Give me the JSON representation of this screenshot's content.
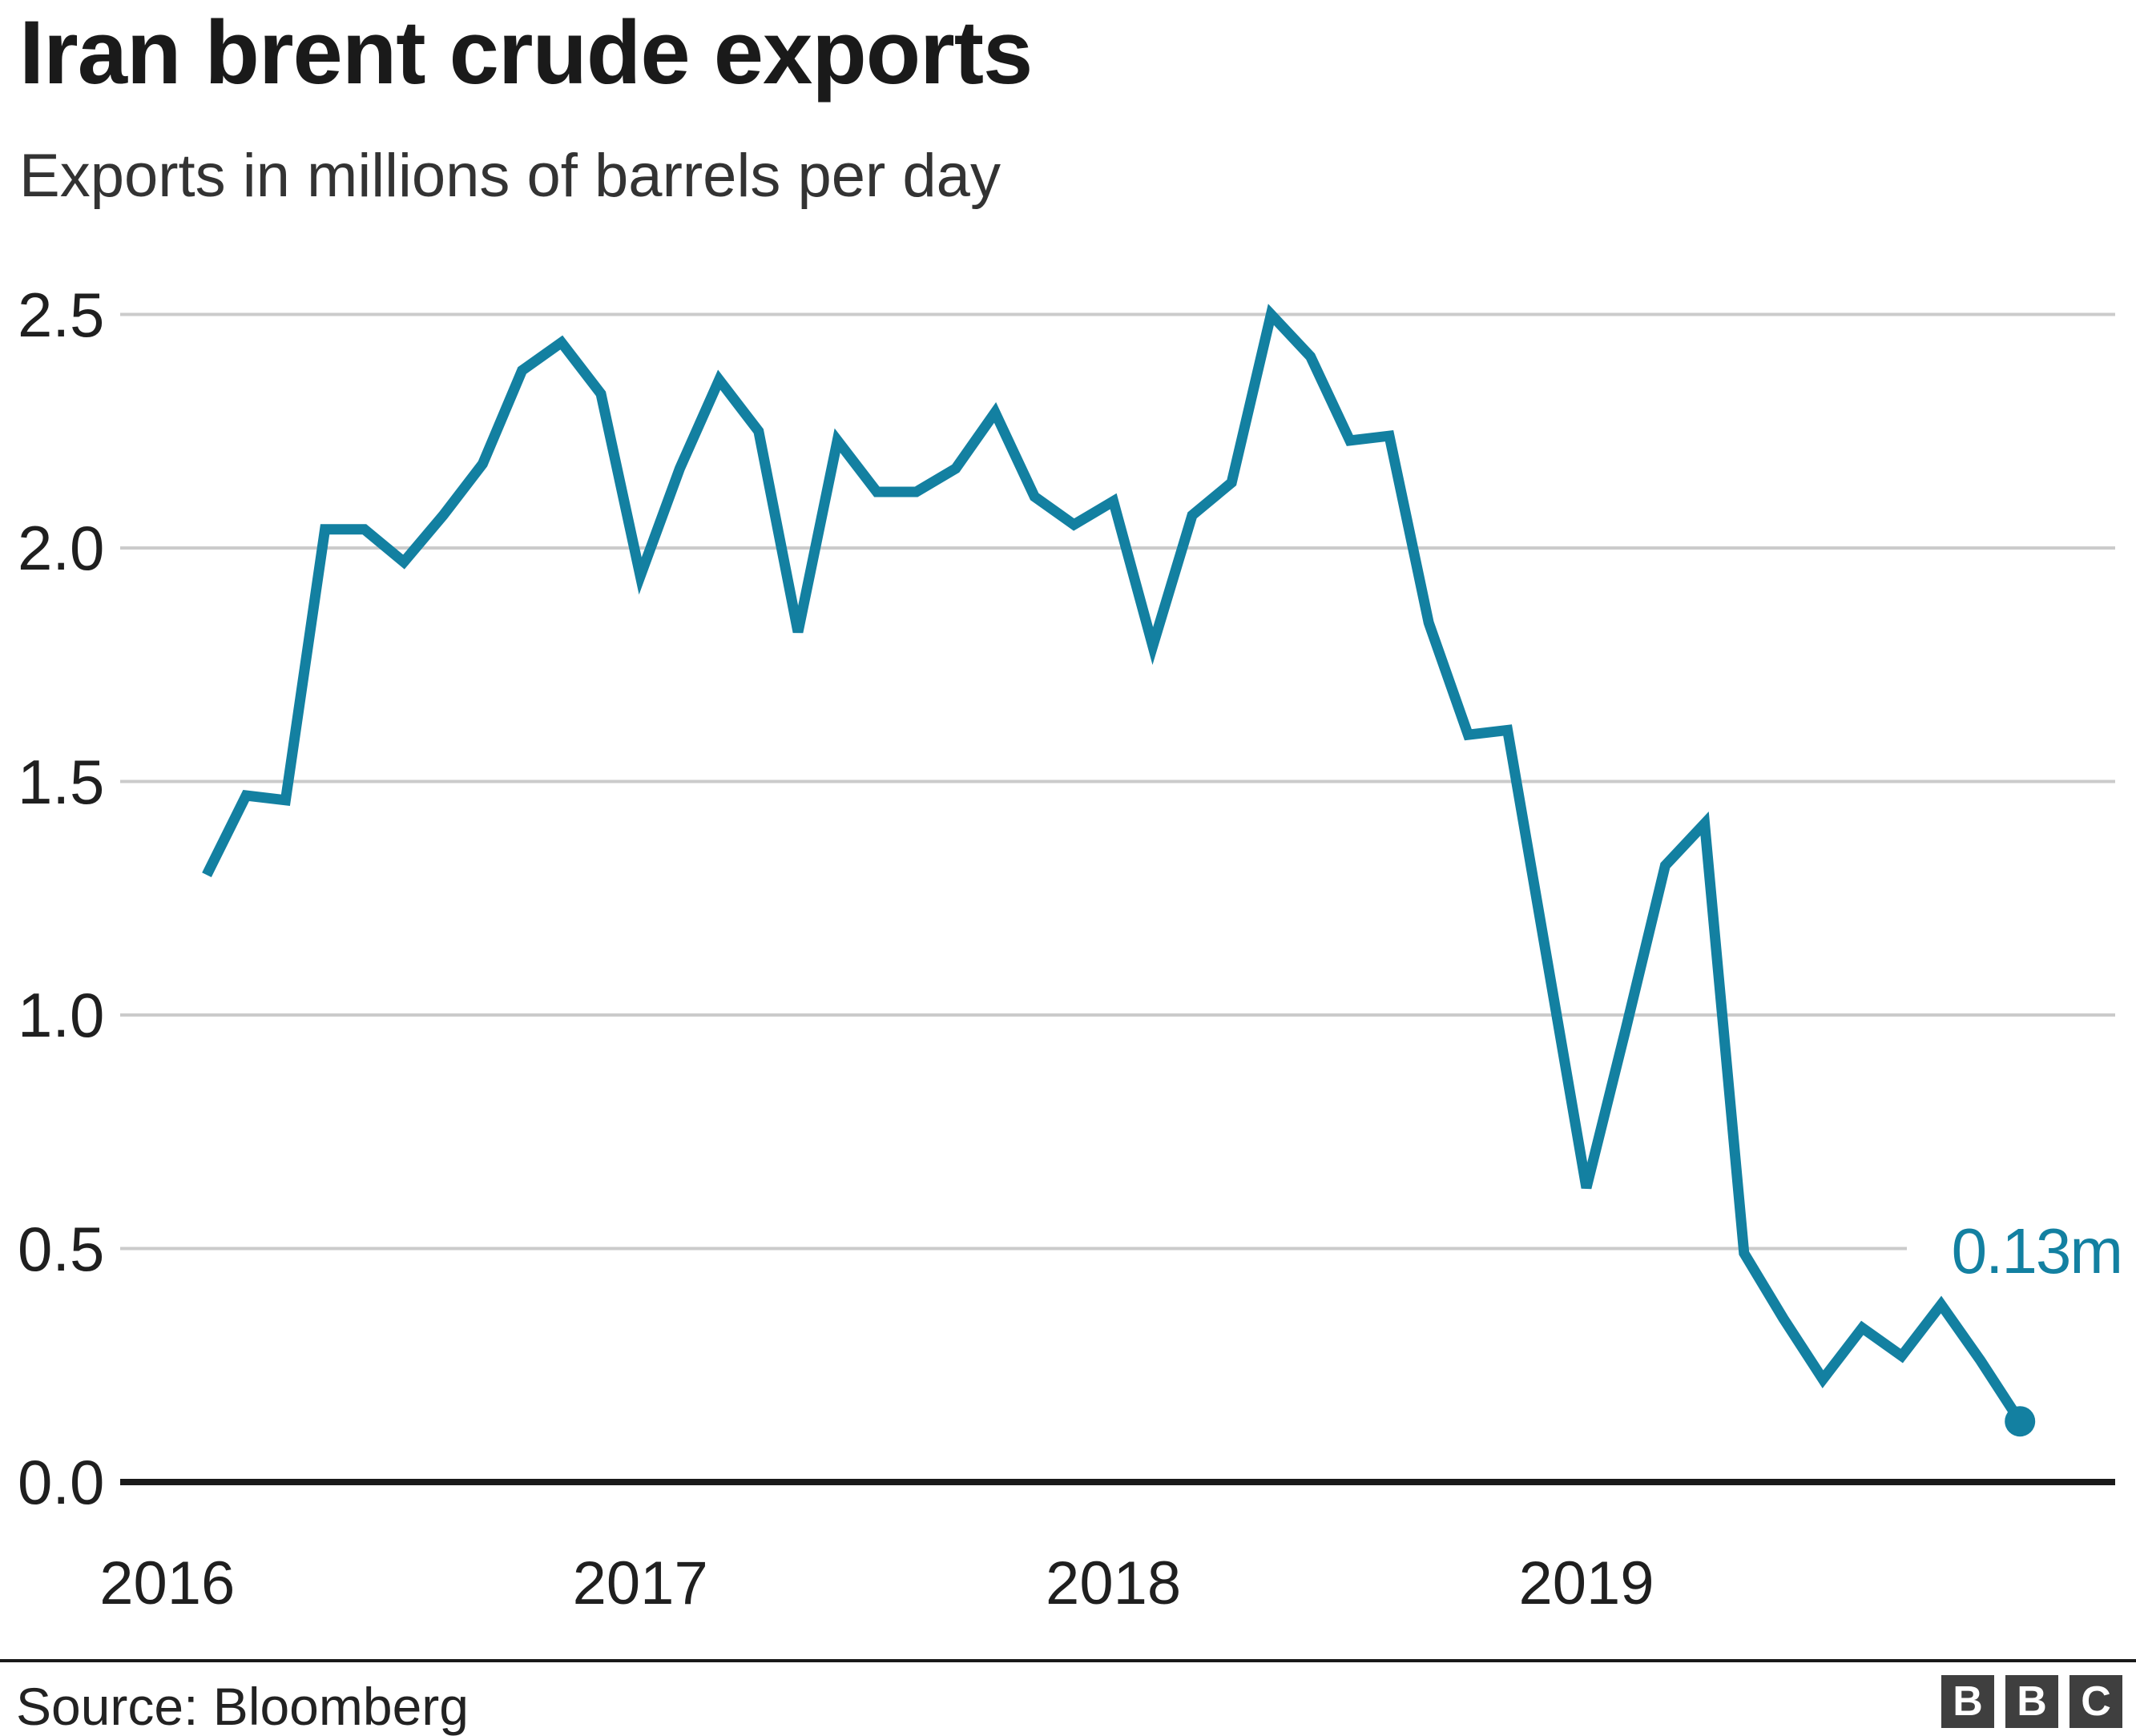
{
  "header": {
    "title": "Iran brent crude exports",
    "subtitle": "Exports in millions of barrels per day"
  },
  "chart_data": {
    "type": "line",
    "title": "Iran brent crude exports",
    "subtitle": "Exports in millions of barrels per day",
    "ylabel": "Exports in millions of barrels per day",
    "xlabel": "",
    "ylim": [
      0,
      2.5
    ],
    "grid": "horizontal-on",
    "legend": "none",
    "line_color": "#1380a1",
    "categories": [
      "Feb 2016",
      "Mar 2016",
      "Apr 2016",
      "May 2016",
      "Jun 2016",
      "Jul 2016",
      "Aug 2016",
      "Sep 2016",
      "Oct 2016",
      "Nov 2016",
      "Dec 2016",
      "Jan 2017",
      "Feb 2017",
      "Mar 2017",
      "Apr 2017",
      "May 2017",
      "Jun 2017",
      "Jul 2017",
      "Aug 2017",
      "Sep 2017",
      "Oct 2017",
      "Nov 2017",
      "Dec 2017",
      "Jan 2018",
      "Feb 2018",
      "Mar 2018",
      "Apr 2018",
      "May 2018",
      "Jun 2018",
      "Jul 2018",
      "Aug 2018",
      "Sep 2018",
      "Oct 2018",
      "Nov 2018",
      "Dec 2018",
      "Jan 2019",
      "Feb 2019",
      "Mar 2019",
      "Apr 2019",
      "May 2019",
      "Jun 2019",
      "Jul 2019",
      "Aug 2019",
      "Sep 2019",
      "Oct 2019",
      "Nov 2019",
      "Dec 2019"
    ],
    "values": [
      1.3,
      1.47,
      1.46,
      2.04,
      2.04,
      1.97,
      2.07,
      2.18,
      2.38,
      2.44,
      2.33,
      1.94,
      2.17,
      2.36,
      2.25,
      1.82,
      2.23,
      2.12,
      2.12,
      2.17,
      2.29,
      2.11,
      2.05,
      2.1,
      1.79,
      2.07,
      2.14,
      2.5,
      2.41,
      2.23,
      2.24,
      1.84,
      1.6,
      1.61,
      1.12,
      0.63,
      0.97,
      1.32,
      1.41,
      0.49,
      0.35,
      0.22,
      0.33,
      0.27,
      0.38,
      0.26,
      0.13
    ],
    "y_ticks": [
      "2.5",
      "2.0",
      "1.5",
      "1.0",
      "0.5",
      "0.0"
    ],
    "x_ticks": [
      {
        "label": "2016",
        "index": -1
      },
      {
        "label": "2017",
        "index": 11
      },
      {
        "label": "2018",
        "index": 23
      },
      {
        "label": "2019",
        "index": 35
      }
    ],
    "annotation": {
      "text": "0.13m",
      "value": 0.13
    }
  },
  "footer": {
    "source": "Source: Bloomberg",
    "logo_letters": [
      "B",
      "B",
      "C"
    ]
  }
}
